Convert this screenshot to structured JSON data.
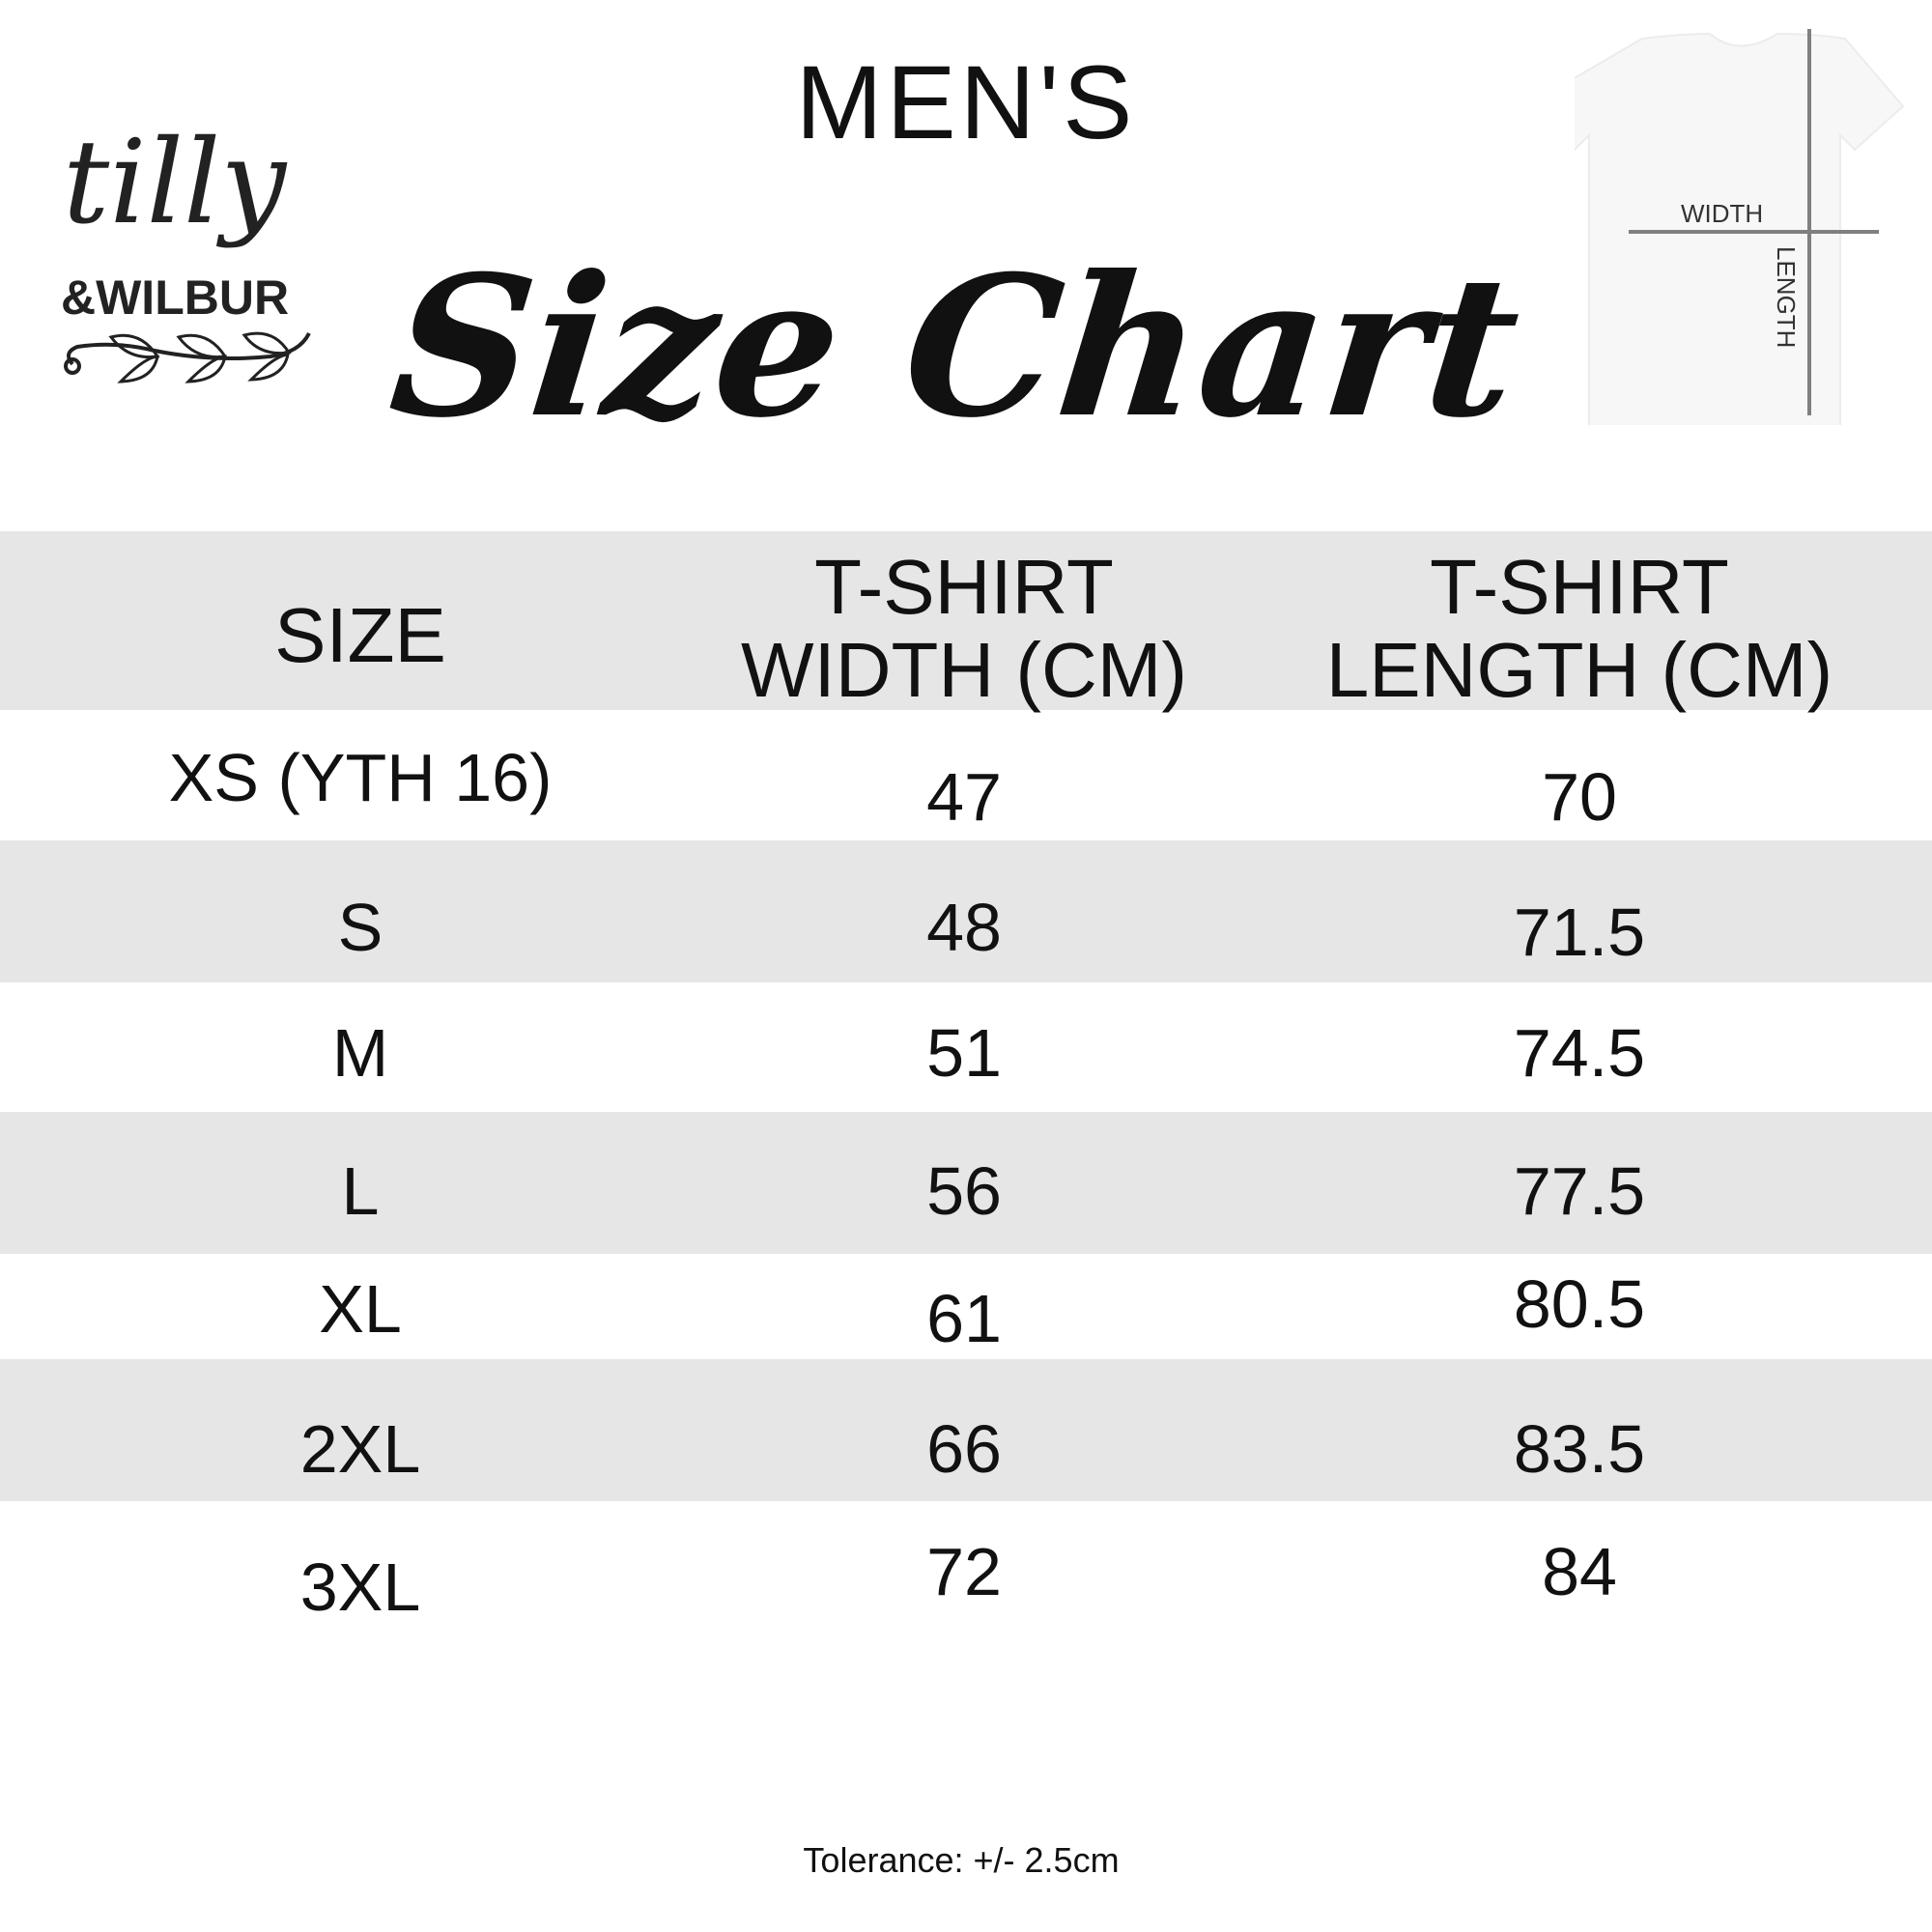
{
  "brand": {
    "logo_text": "tilly & WILBUR"
  },
  "header": {
    "subtitle": "MEN'S",
    "title": "Size Chart"
  },
  "diagram": {
    "width_label": "WIDTH",
    "length_label": "LENGTH",
    "line_color": "#808080"
  },
  "table": {
    "columns": [
      {
        "line1": "SIZE",
        "line2": ""
      },
      {
        "line1": "T-SHIRT",
        "line2": "WIDTH (CM)"
      },
      {
        "line1": "T-SHIRT",
        "line2": "LENGTH (CM)"
      }
    ],
    "rows": [
      {
        "size": "XS (YTH 16)",
        "width": "47",
        "length": "70"
      },
      {
        "size": "S",
        "width": "48",
        "length": "71.5"
      },
      {
        "size": "M",
        "width": "51",
        "length": "74.5"
      },
      {
        "size": "L",
        "width": "56",
        "length": "77.5"
      },
      {
        "size": "XL",
        "width": "61",
        "length": "80.5"
      },
      {
        "size": "2XL",
        "width": "66",
        "length": "83.5"
      },
      {
        "size": "3XL",
        "width": "72",
        "length": "84"
      }
    ],
    "band_color": "#e6e6e6"
  },
  "footer": {
    "tolerance": "Tolerance: +/- 2.5cm"
  }
}
